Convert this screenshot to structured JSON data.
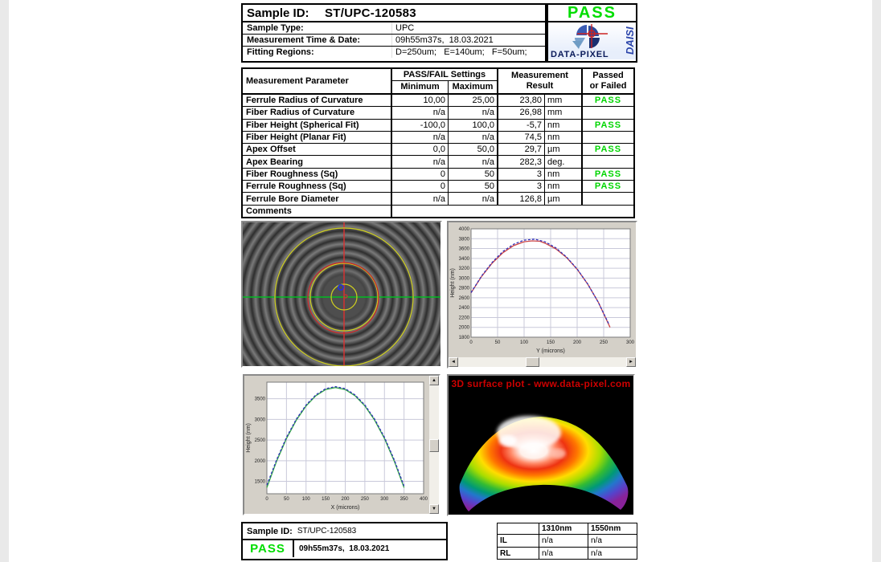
{
  "header": {
    "sample_id_label": "Sample ID:",
    "sample_id_value": "ST/UPC-120583",
    "status": "PASS",
    "rows": [
      {
        "label": "Sample Type:",
        "value": "UPC"
      },
      {
        "label": "Measurement Time & Date:",
        "value": "09h55m37s,  18.03.2021"
      },
      {
        "label": "Fitting Regions:",
        "value": "D=250um;   E=140um;   F=50um;"
      }
    ],
    "logo": {
      "brand": "DATA-PIXEL",
      "product": "DAISI"
    }
  },
  "measurement_table": {
    "col_param": "Measurement Parameter",
    "col_settings": "PASS/FAIL Settings",
    "col_min": "Minimum",
    "col_max": "Maximum",
    "col_result_line1": "Measurement",
    "col_result_line2": "Result",
    "col_passed_line1": "Passed",
    "col_passed_line2": "or Failed",
    "comments_label": "Comments",
    "rows": [
      {
        "param": "Ferrule Radius of Curvature",
        "min": "10,00",
        "max": "25,00",
        "result": "23,80",
        "unit": "mm",
        "status": "PASS"
      },
      {
        "param": "Fiber Radius of Curvature",
        "min": "n/a",
        "max": "n/a",
        "result": "26,98",
        "unit": "mm",
        "status": ""
      },
      {
        "param": "Fiber Height (Spherical Fit)",
        "min": "-100,0",
        "max": "100,0",
        "result": "-5,7",
        "unit": "nm",
        "status": "PASS"
      },
      {
        "param": "Fiber Height (Planar Fit)",
        "min": "n/a",
        "max": "n/a",
        "result": "74,5",
        "unit": "nm",
        "status": ""
      },
      {
        "param": "Apex Offset",
        "min": "0,0",
        "max": "50,0",
        "result": "29,7",
        "unit": "µm",
        "status": "PASS"
      },
      {
        "param": "Apex Bearing",
        "min": "n/a",
        "max": "n/a",
        "result": "282,3",
        "unit": "deg.",
        "status": ""
      },
      {
        "param": "Fiber Roughness (Sq)",
        "min": "0",
        "max": "50",
        "result": "3",
        "unit": "nm",
        "status": "PASS"
      },
      {
        "param": "Ferrule Roughness (Sq)",
        "min": "0",
        "max": "50",
        "result": "3",
        "unit": "nm",
        "status": "PASS"
      },
      {
        "param": "Ferrule Bore Diameter",
        "min": "n/a",
        "max": "n/a",
        "result": "126,8",
        "unit": "µm",
        "status": ""
      }
    ]
  },
  "charts": {
    "y_profile": {
      "type": "line",
      "xlabel": "Y (microns)",
      "ylabel": "Height (nm)",
      "x_range": [
        0,
        300
      ],
      "y_range": [
        1800,
        4000
      ],
      "x_ticks": [
        0,
        50,
        100,
        150,
        200,
        250,
        300
      ],
      "y_ticks": [
        1800,
        2000,
        2200,
        2400,
        2600,
        2800,
        3000,
        3200,
        3400,
        3600,
        3800,
        4000
      ],
      "series": [
        {
          "name": "measured-profile",
          "color": "#cc4444",
          "dash": "",
          "points": [
            [
              0,
              2700
            ],
            [
              20,
              3035
            ],
            [
              40,
              3306
            ],
            [
              60,
              3514
            ],
            [
              80,
              3657
            ],
            [
              100,
              3737
            ],
            [
              115,
              3755
            ],
            [
              130,
              3748
            ],
            [
              140,
              3705
            ],
            [
              160,
              3593
            ],
            [
              180,
              3418
            ],
            [
              200,
              3178
            ],
            [
              220,
              2875
            ],
            [
              240,
              2508
            ],
            [
              262,
              2000
            ]
          ]
        },
        {
          "name": "spherical-fit",
          "color": "#3333bb",
          "dash": "3,2",
          "points": [
            [
              0,
              2705
            ],
            [
              20,
              3045
            ],
            [
              40,
              3320
            ],
            [
              60,
              3540
            ],
            [
              80,
              3685
            ],
            [
              100,
              3770
            ],
            [
              120,
              3790
            ],
            [
              140,
              3735
            ],
            [
              160,
              3612
            ],
            [
              180,
              3428
            ],
            [
              200,
              3185
            ],
            [
              220,
              2878
            ],
            [
              240,
              2505
            ],
            [
              260,
              2060
            ]
          ]
        }
      ]
    },
    "x_profile": {
      "type": "line",
      "xlabel": "X (microns)",
      "ylabel": "Height (nm)",
      "x_range": [
        0,
        400
      ],
      "y_range": [
        1200,
        3900
      ],
      "x_ticks": [
        0,
        50,
        100,
        150,
        200,
        250,
        300,
        350,
        400
      ],
      "y_ticks": [
        1500,
        2000,
        2500,
        3000,
        3500
      ],
      "series": [
        {
          "name": "measured-profile",
          "color": "#33aa44",
          "dash": "",
          "points": [
            [
              0,
              1350
            ],
            [
              25,
              1992
            ],
            [
              50,
              2536
            ],
            [
              75,
              2980
            ],
            [
              100,
              3326
            ],
            [
              125,
              3572
            ],
            [
              150,
              3721
            ],
            [
              175,
              3770
            ],
            [
              200,
              3721
            ],
            [
              225,
              3572
            ],
            [
              250,
              3326
            ],
            [
              275,
              2980
            ],
            [
              300,
              2536
            ],
            [
              325,
              1992
            ],
            [
              350,
              1350
            ]
          ]
        },
        {
          "name": "spherical-fit",
          "color": "#3333bb",
          "dash": "3,2",
          "points": [
            [
              0,
              1410
            ],
            [
              25,
              2025
            ],
            [
              50,
              2565
            ],
            [
              75,
              3005
            ],
            [
              100,
              3348
            ],
            [
              125,
              3592
            ],
            [
              150,
              3742
            ],
            [
              175,
              3792
            ],
            [
              200,
              3742
            ],
            [
              225,
              3592
            ],
            [
              250,
              3348
            ],
            [
              275,
              3005
            ],
            [
              300,
              2565
            ],
            [
              325,
              2025
            ],
            [
              350,
              1390
            ]
          ]
        }
      ]
    }
  },
  "surface_plot": {
    "title": "3D surface plot - www.data-pixel.com"
  },
  "footer": {
    "sample_id_label": "Sample ID:",
    "sample_id_value": "ST/UPC-120583",
    "status": "PASS",
    "timestamp": "09h55m37s,  18.03.2021"
  },
  "il_rl_table": {
    "col1": "1310nm",
    "col2": "1550nm",
    "rows": [
      {
        "label": "IL",
        "v1": "n/a",
        "v2": "n/a"
      },
      {
        "label": "RL",
        "v1": "n/a",
        "v2": "n/a"
      }
    ]
  },
  "colors": {
    "pass_green": "#00dd00",
    "plot3d_title_red": "#cc0000",
    "panel_gray": "#d4d0c8",
    "logo_navy": "#0a1a5a",
    "daisi_blue": "#2a44aa"
  }
}
